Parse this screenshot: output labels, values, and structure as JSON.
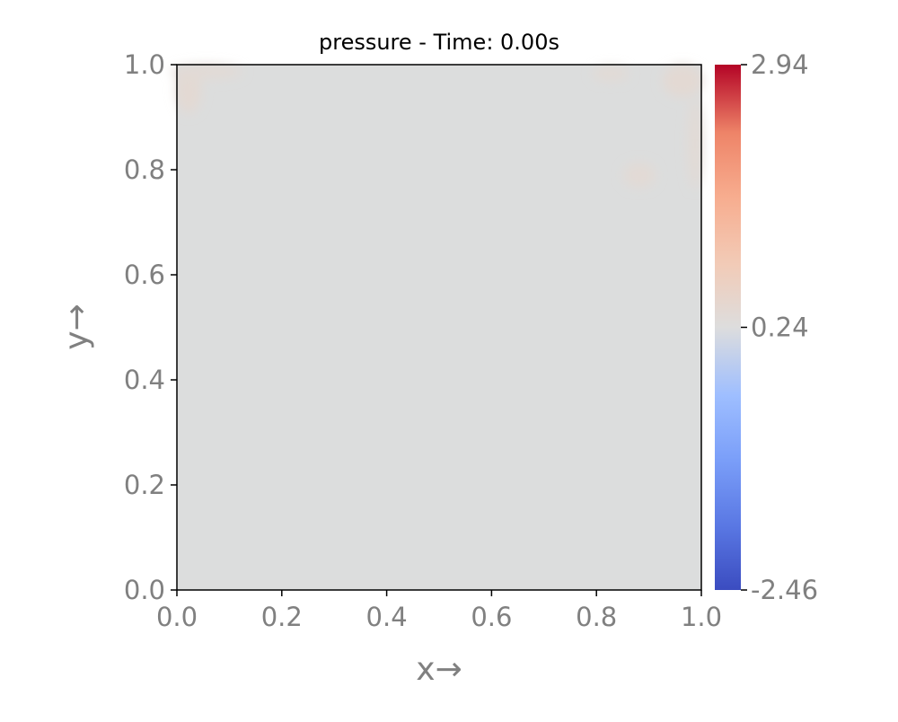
{
  "chart_data": {
    "type": "heatmap",
    "title": "pressure - Time: 0.00s",
    "xlabel": "x→",
    "ylabel": "y→",
    "xlim": [
      0.0,
      1.0
    ],
    "ylim": [
      0.0,
      1.0
    ],
    "x_ticks": [
      0.0,
      0.2,
      0.4,
      0.6,
      0.8,
      1.0
    ],
    "y_ticks": [
      0.0,
      0.2,
      0.4,
      0.6,
      0.8,
      1.0
    ],
    "x_tick_labels": [
      "0.0",
      "0.2",
      "0.4",
      "0.6",
      "0.8",
      "1.0"
    ],
    "y_tick_labels": [
      "0.0",
      "0.2",
      "0.4",
      "0.6",
      "0.8",
      "1.0"
    ],
    "colormap": "coolwarm",
    "colorbar": {
      "min": -2.46,
      "max": 2.94,
      "ticks": [
        -2.46,
        0.24,
        2.94
      ],
      "tick_labels": [
        "-2.46",
        "0.24",
        "2.94"
      ]
    },
    "field_background_value": 0.24,
    "grid": false,
    "legend": "none",
    "colors": {
      "background_field": "#dcdddd",
      "warm_patch": "#e3d9d3"
    }
  }
}
